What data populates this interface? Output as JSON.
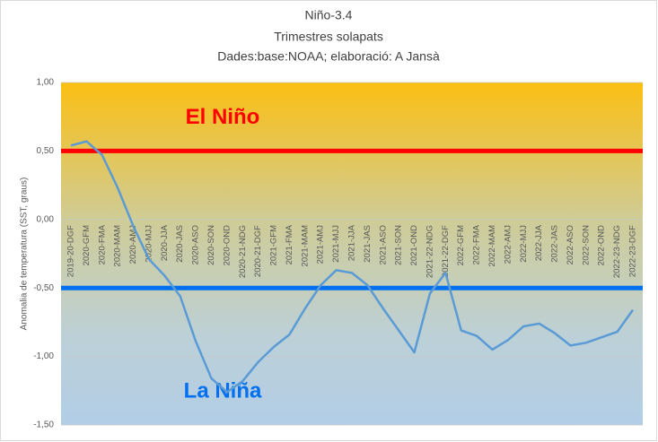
{
  "chart_data": {
    "type": "line",
    "title": "Niño-3.4",
    "subtitle": "Trimestres solapats",
    "source": "Dades:base:NOAA; elaboració: A Jansà",
    "y_label": "Anomalia de temperatura (SST, graus)",
    "categories": [
      "2019-20-DGF",
      "2020-GFM",
      "2020-FMA",
      "2020-MAM",
      "2020-AMJ",
      "2020-MJJ",
      "2020-JJA",
      "2020-JAS",
      "2020-ASO",
      "2020-SON",
      "2020-OND",
      "2020-21-NDG",
      "2020-21-DGF",
      "2021-GFM",
      "2021-FMA",
      "2021-MAM",
      "2021-AMJ",
      "2021-MJJ",
      "2021-JJA",
      "2021-JAS",
      "2021-ASO",
      "2021-SON",
      "2021-OND",
      "2021-22-NDG",
      "2021-22-DGF",
      "2022-GFM",
      "2022-FMA",
      "2022-MAM",
      "2022-AMJ",
      "2022-MJJ",
      "2022-JJA",
      "2022-JAS",
      "2022-ASO",
      "2022-SON",
      "2022-OND",
      "2022-23-NDG",
      "2022-23-DGF"
    ],
    "series": [
      {
        "color": "#5b9bd5",
        "values": [
          0.54,
          0.57,
          0.47,
          0.23,
          -0.05,
          -0.29,
          -0.41,
          -0.56,
          -0.89,
          -1.16,
          -1.26,
          -1.18,
          -1.04,
          -0.93,
          -0.84,
          -0.65,
          -0.48,
          -0.37,
          -0.39,
          -0.48,
          -0.65,
          -0.81,
          -0.97,
          -0.54,
          -0.39,
          -0.81,
          -0.85,
          -0.95,
          -0.88,
          -0.78,
          -0.76,
          -0.83,
          -0.92,
          -0.9,
          -0.86,
          -0.82,
          -0.66
        ]
      }
    ],
    "ylim": [
      -1.5,
      1.0
    ],
    "yticks": [
      {
        "value": 1.0,
        "label": "1,00"
      },
      {
        "value": 0.5,
        "label": "0,50"
      },
      {
        "value": 0,
        "label": "0,00"
      },
      {
        "value": -0.5,
        "label": "-0,50"
      },
      {
        "value": -1.0,
        "label": "-1,00"
      },
      {
        "value": -1.5,
        "label": "-1,50"
      }
    ],
    "grid": true,
    "thresholds": [
      {
        "value": 0.5,
        "color": "#ff0000",
        "label": "El Niño",
        "label_value": 0.74
      },
      {
        "value": -0.5,
        "color": "#0070f0",
        "label": "La Niña",
        "label_value": -1.26
      }
    ]
  }
}
